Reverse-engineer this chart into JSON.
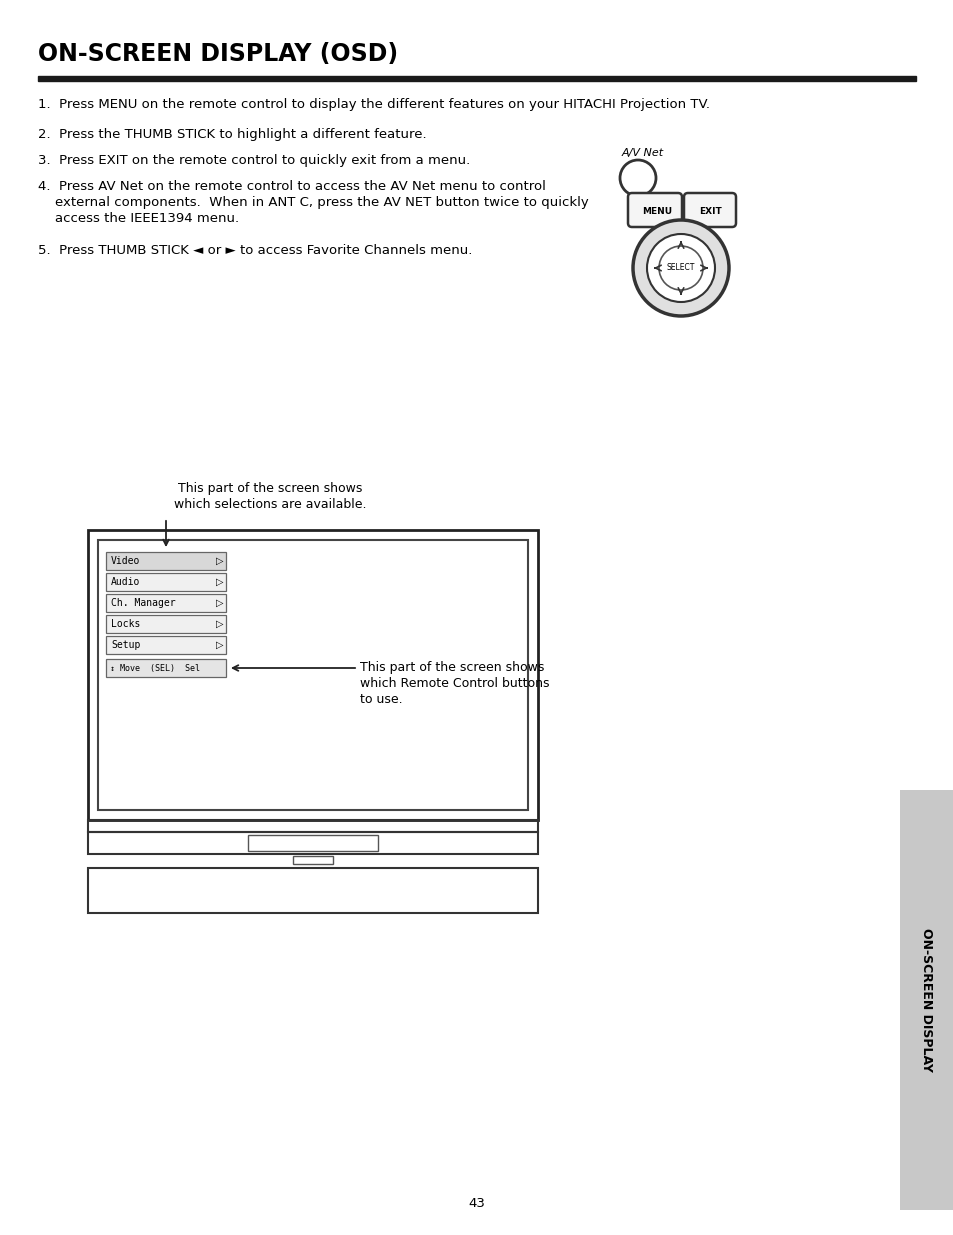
{
  "title": "ON-SCREEN DISPLAY (OSD)",
  "bg_color": "#ffffff",
  "text_color": "#000000",
  "item1": "1.  Press MENU on the remote control to display the different features on your HITACHI Projection TV.",
  "item2": "2.  Press the THUMB STICK to highlight a different feature.",
  "item3": "3.  Press EXIT on the remote control to quickly exit from a menu.",
  "item4a": "4.  Press AV Net on the remote control to access the AV Net menu to control",
  "item4b": "    external components.  When in ANT C, press the AV NET button twice to quickly",
  "item4c": "    access the IEEE1394 menu.",
  "item5": "5.  Press THUMB STICK ◄ or ► to access Favorite Channels menu.",
  "menu_items": [
    "Video",
    "Audio",
    "Ch. Manager",
    "Locks",
    "Setup"
  ],
  "status_bar": "↕ Move  (SEL)  Sel",
  "annotation1_line1": "This part of the screen shows",
  "annotation1_line2": "which selections are available.",
  "annotation2_line1": "This part of the screen shows",
  "annotation2_line2": "which Remote Control buttons",
  "annotation2_line3": "to use.",
  "page_number": "43",
  "sidebar_text": "ON-SCREEN DISPLAY",
  "av_net_label": "A/V Net",
  "title_fontsize": 17,
  "body_fontsize": 9.5,
  "sidebar_color": "#c8c8c8",
  "line_color": "#1a1a1a",
  "rc_color": "#333333"
}
